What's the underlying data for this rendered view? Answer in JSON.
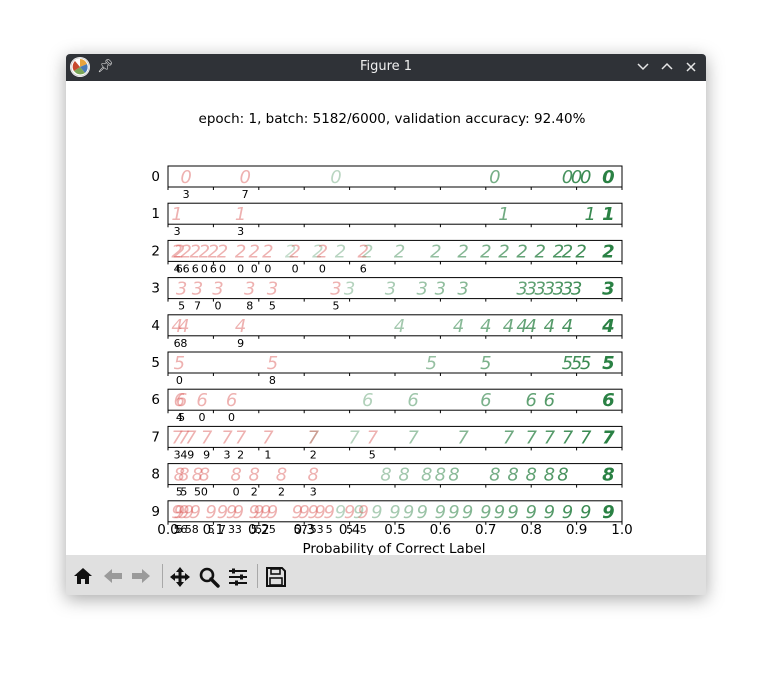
{
  "window": {
    "title": "Figure 1"
  },
  "icons": {
    "app": "matplotlib-logo-icon",
    "pin": "pin-icon",
    "minimize": "chevron-down-icon",
    "maximize": "chevron-up-icon",
    "close": "close-icon",
    "home": "home-icon",
    "back": "arrow-left-icon",
    "forward": "arrow-right-icon",
    "pan": "move-arrows-icon",
    "zoom": "magnifier-icon",
    "configure": "sliders-icon",
    "save": "floppy-disk-icon"
  },
  "colors": {
    "incorrect": "#d9534f",
    "correct": "#1f7a3a",
    "titlebar": "#2f3237",
    "toolbar": "#e0e0e0"
  },
  "chart_data": {
    "type": "scatter",
    "title": "epoch: 1, batch: 5182/6000, validation accuracy: 92.40%",
    "xlabel": "Probability of Correct Label",
    "ylabel": "",
    "xlim": [
      0.0,
      1.0
    ],
    "x_ticks": [
      "0.0",
      "0.1",
      "0.2",
      "0.3",
      "0.4",
      "0.5",
      "0.6",
      "0.7",
      "0.8",
      "0.9",
      "1.0"
    ],
    "grid": false,
    "rows": [
      {
        "label": "0",
        "correct_x": [
          0.37,
          0.72,
          0.88,
          0.9,
          0.92,
          0.97
        ],
        "wrong": [
          {
            "x": 0.04,
            "pred": "3"
          },
          {
            "x": 0.17,
            "pred": "7"
          }
        ]
      },
      {
        "label": "1",
        "correct_x": [
          0.74,
          0.93,
          0.97
        ],
        "wrong": [
          {
            "x": 0.02,
            "pred": "3"
          },
          {
            "x": 0.16,
            "pred": "3"
          }
        ]
      },
      {
        "label": "2",
        "correct_x": [
          0.27,
          0.33,
          0.38,
          0.44,
          0.51,
          0.59,
          0.65,
          0.7,
          0.74,
          0.78,
          0.82,
          0.86,
          0.88,
          0.91,
          0.97
        ],
        "wrong": [
          {
            "x": 0.02,
            "pred": "4"
          },
          {
            "x": 0.025,
            "pred": "6"
          },
          {
            "x": 0.04,
            "pred": "6"
          },
          {
            "x": 0.06,
            "pred": "6"
          },
          {
            "x": 0.08,
            "pred": "0"
          },
          {
            "x": 0.1,
            "pred": "6"
          },
          {
            "x": 0.12,
            "pred": "0"
          },
          {
            "x": 0.16,
            "pred": "0"
          },
          {
            "x": 0.19,
            "pred": "0"
          },
          {
            "x": 0.22,
            "pred": "0"
          },
          {
            "x": 0.28,
            "pred": "0"
          },
          {
            "x": 0.34,
            "pred": "0"
          },
          {
            "x": 0.43,
            "pred": "6"
          }
        ]
      },
      {
        "label": "3",
        "correct_x": [
          0.4,
          0.49,
          0.56,
          0.6,
          0.65,
          0.78,
          0.8,
          0.82,
          0.84,
          0.86,
          0.88,
          0.9,
          0.97
        ],
        "wrong": [
          {
            "x": 0.03,
            "pred": "5"
          },
          {
            "x": 0.065,
            "pred": "7"
          },
          {
            "x": 0.11,
            "pred": "0"
          },
          {
            "x": 0.18,
            "pred": "8"
          },
          {
            "x": 0.23,
            "pred": "5"
          },
          {
            "x": 0.37,
            "pred": "5"
          }
        ]
      },
      {
        "label": "4",
        "correct_x": [
          0.51,
          0.64,
          0.7,
          0.75,
          0.78,
          0.8,
          0.84,
          0.88,
          0.97
        ],
        "wrong": [
          {
            "x": 0.02,
            "pred": "6"
          },
          {
            "x": 0.035,
            "pred": "8"
          },
          {
            "x": 0.16,
            "pred": "9"
          }
        ]
      },
      {
        "label": "5",
        "correct_x": [
          0.58,
          0.7,
          0.88,
          0.9,
          0.92,
          0.97
        ],
        "wrong": [
          {
            "x": 0.025,
            "pred": "0"
          },
          {
            "x": 0.23,
            "pred": "8"
          }
        ]
      },
      {
        "label": "6",
        "correct_x": [
          0.44,
          0.54,
          0.7,
          0.8,
          0.84,
          0.97
        ],
        "wrong": [
          {
            "x": 0.025,
            "pred": "4"
          },
          {
            "x": 0.03,
            "pred": "5"
          },
          {
            "x": 0.075,
            "pred": "0"
          },
          {
            "x": 0.14,
            "pred": "0"
          }
        ]
      },
      {
        "label": "7",
        "correct_x": [
          0.32,
          0.41,
          0.54,
          0.65,
          0.75,
          0.8,
          0.84,
          0.88,
          0.92,
          0.97
        ],
        "wrong": [
          {
            "x": 0.02,
            "pred": "3"
          },
          {
            "x": 0.035,
            "pred": "4"
          },
          {
            "x": 0.05,
            "pred": "9"
          },
          {
            "x": 0.085,
            "pred": "9"
          },
          {
            "x": 0.13,
            "pred": "3"
          },
          {
            "x": 0.16,
            "pred": "2"
          },
          {
            "x": 0.22,
            "pred": "1"
          },
          {
            "x": 0.32,
            "pred": "2"
          },
          {
            "x": 0.45,
            "pred": "5"
          }
        ]
      },
      {
        "label": "8",
        "correct_x": [
          0.48,
          0.52,
          0.57,
          0.6,
          0.63,
          0.72,
          0.76,
          0.8,
          0.84,
          0.87,
          0.97
        ],
        "wrong": [
          {
            "x": 0.025,
            "pred": "5"
          },
          {
            "x": 0.035,
            "pred": "5"
          },
          {
            "x": 0.065,
            "pred": "5"
          },
          {
            "x": 0.08,
            "pred": "0"
          },
          {
            "x": 0.15,
            "pred": "0"
          },
          {
            "x": 0.19,
            "pred": "2"
          },
          {
            "x": 0.25,
            "pred": "2"
          },
          {
            "x": 0.32,
            "pred": "3"
          }
        ]
      },
      {
        "label": "9",
        "correct_x": [
          0.38,
          0.42,
          0.46,
          0.5,
          0.53,
          0.56,
          0.6,
          0.63,
          0.66,
          0.7,
          0.73,
          0.76,
          0.8,
          0.84,
          0.88,
          0.92,
          0.97
        ],
        "wrong": [
          {
            "x": 0.02,
            "pred": "5"
          },
          {
            "x": 0.025,
            "pred": "5"
          },
          {
            "x": 0.035,
            "pred": "6"
          },
          {
            "x": 0.045,
            "pred": "5"
          },
          {
            "x": 0.06,
            "pred": "8"
          },
          {
            "x": 0.095,
            "pred": "5"
          },
          {
            "x": 0.12,
            "pred": "7"
          },
          {
            "x": 0.14,
            "pred": "3"
          },
          {
            "x": 0.155,
            "pred": "3"
          },
          {
            "x": 0.19,
            "pred": "5"
          },
          {
            "x": 0.2,
            "pred": "5"
          },
          {
            "x": 0.215,
            "pred": "7"
          },
          {
            "x": 0.23,
            "pred": "5"
          },
          {
            "x": 0.285,
            "pred": "5"
          },
          {
            "x": 0.3,
            "pred": "7"
          },
          {
            "x": 0.32,
            "pred": "5"
          },
          {
            "x": 0.335,
            "pred": "3"
          },
          {
            "x": 0.355,
            "pred": "5"
          },
          {
            "x": 0.4,
            "pred": "5"
          },
          {
            "x": 0.43,
            "pred": "5"
          }
        ]
      }
    ]
  }
}
